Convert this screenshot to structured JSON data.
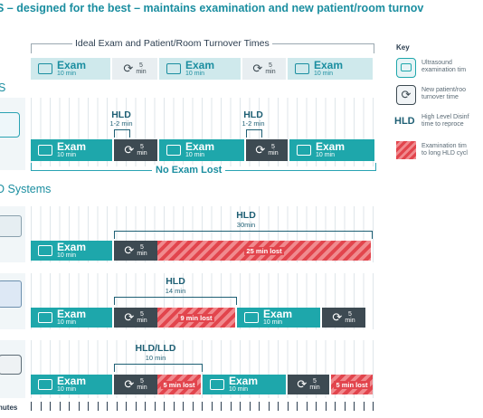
{
  "headline": "S – designed for the best – maintains examination and new patient/room turnov",
  "section_label_top": "S",
  "section_label_systems": "D Systems",
  "ideal_title": "Ideal Exam and Patient/Room Turnover Times",
  "exam": {
    "label": "Exam",
    "sub": "10 min"
  },
  "turnover": {
    "num": "5",
    "unit": "min"
  },
  "hld_short": {
    "label": "HLD",
    "sub": "1-2 min"
  },
  "no_exam_lost": "No Exam Lost",
  "row1": {
    "hld_label": "HLD",
    "hld_sub": "30min",
    "lost": "25 min lost"
  },
  "row2": {
    "hld_label": "HLD",
    "hld_sub": "14 min",
    "lost": "9 min lost"
  },
  "row3": {
    "hld_label": "HLD/LLD",
    "hld_sub": "10 min",
    "lost": "5 min lost"
  },
  "minutes_label": "nutes",
  "key": {
    "title": "Key",
    "exam": [
      "Ultrasound",
      "examination tim"
    ],
    "turn": [
      "New patient/roo",
      "turnover time"
    ],
    "hld_tag": "HLD",
    "hld": [
      "High Level Disinf",
      "time to reproce"
    ],
    "lost": [
      "Examination tim",
      "to long HLD cycl"
    ]
  },
  "colors": {
    "teal": "#1ea7ab",
    "dark": "#3d4a52",
    "lost": "#e2454d",
    "navy": "#1e5f74"
  }
}
